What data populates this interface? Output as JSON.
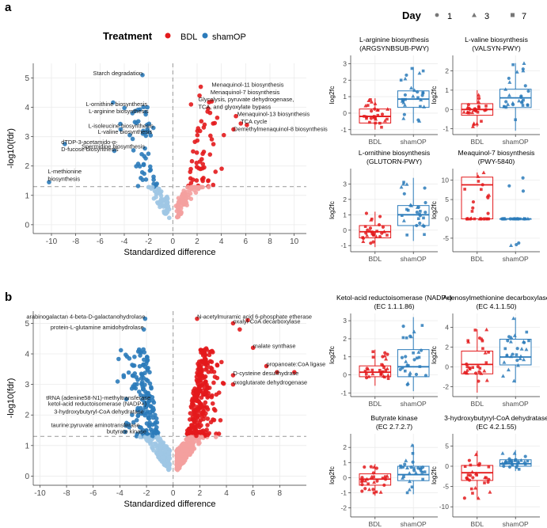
{
  "colors": {
    "bdl": "#e31a1c",
    "bdl_light": "#f4a09f",
    "sham": "#2b7bba",
    "sham_light": "#9ec6e4",
    "grid": "#ebebeb",
    "axis": "#333333",
    "dash": "#999999"
  },
  "panel_labels": {
    "a": "a",
    "b": "b"
  },
  "legend": {
    "treatment_title": "Treatment",
    "treatment_items": [
      "BDL",
      "shamOP"
    ],
    "day_title": "Day",
    "day_items": [
      "1",
      "3",
      "7"
    ]
  },
  "chart_data": [
    {
      "id": "volcano_a",
      "type": "scatter",
      "xlabel": "Standardized difference",
      "ylabel": "-log10(fdr)",
      "xlim": [
        -11.5,
        11
      ],
      "ylim": [
        -0.3,
        5.5
      ],
      "xticks": [
        -10,
        -8,
        -6,
        -4,
        -2,
        0,
        2,
        4,
        6,
        8,
        10
      ],
      "yticks": [
        0,
        1,
        2,
        3,
        4,
        5
      ],
      "threshold_y": 1.3,
      "annotations": [
        {
          "text": "Starch degradation",
          "x": -2.5,
          "y": 5.1
        },
        {
          "text": "L-ornithine biosynthesis",
          "x": -2.1,
          "y": 4.05
        },
        {
          "text": "L-arginine biosynthesis",
          "x": -2.0,
          "y": 3.8
        },
        {
          "text": "L-isoleucine biosynthesis",
          "x": -1.6,
          "y": 3.3
        },
        {
          "text": "L-valine biosynthesis",
          "x": -1.7,
          "y": 3.1
        },
        {
          "text": "dTDP-3-acetamido-α-",
          "x": -9.2,
          "y": 2.75
        },
        {
          "text": "D-fucose biosynthesis",
          "x": -9.2,
          "y": 2.5
        },
        {
          "text": "Spermidine biosynthesis",
          "x": -2.3,
          "y": 2.6
        },
        {
          "text": "L-methionine",
          "x": -10.3,
          "y": 1.75
        },
        {
          "text": "biosynthesis",
          "x": -10.3,
          "y": 1.5
        },
        {
          "text": "Menaquinol-11 biosynthesis",
          "x": 3.2,
          "y": 4.7
        },
        {
          "text": "Menaquinol-7 biosynthesis",
          "x": 3.1,
          "y": 4.45
        },
        {
          "text": "Glycolysis, pyruvate dehydrogenase,",
          "x": 2.1,
          "y": 4.2
        },
        {
          "text": "TCA, and glyoxylate bypass",
          "x": 2.1,
          "y": 3.95
        },
        {
          "text": "Menaquinol-13 biosynthesis",
          "x": 5.3,
          "y": 3.7
        },
        {
          "text": "TCA cycle",
          "x": 5.6,
          "y": 3.45
        },
        {
          "text": "Demethylmenaquinol-8 biosynthesis",
          "x": 5.0,
          "y": 3.2
        }
      ]
    },
    {
      "id": "volcano_b",
      "type": "scatter",
      "xlabel": "Standardized difference",
      "ylabel": "-log10(fdr)",
      "xlim": [
        -10.5,
        10
      ],
      "ylim": [
        -0.3,
        5.4
      ],
      "xticks": [
        -10,
        -8,
        -6,
        -4,
        -2,
        0,
        2,
        4,
        6,
        8
      ],
      "yticks": [
        0,
        1,
        2,
        3,
        4,
        5
      ],
      "threshold_y": 1.3,
      "annotations": [
        {
          "text": "arabinogalactan 4-beta-D-galactanohydrolase",
          "x": -2.1,
          "y": 5.15
        },
        {
          "text": "protein-L-glutamine amidohydrolase",
          "x": -2.2,
          "y": 4.8
        },
        {
          "text": "tRNA (adenine58-N1)-methyltransferase",
          "x": -1.7,
          "y": 2.5
        },
        {
          "text": "ketol-acid reductoisomerase (NADP+)",
          "x": -2.0,
          "y": 2.3
        },
        {
          "text": "3-hydroxybutyryl-CoA dehydratase",
          "x": -2.2,
          "y": 2.05
        },
        {
          "text": "taurine:pyruvate aminotransferase",
          "x": -2.5,
          "y": 1.6
        },
        {
          "text": "butyrate kinase",
          "x": -2.0,
          "y": 1.4
        },
        {
          "text": "N-acetylmuramic acid 6-phosphate etherase",
          "x": 1.8,
          "y": 5.15
        },
        {
          "text": "oxalyl-CoA decarboxylase",
          "x": 4.5,
          "y": 5.0
        },
        {
          "text": "malate synthase",
          "x": 6.0,
          "y": 4.2
        },
        {
          "text": "propanoate:CoA ligase",
          "x": 7.0,
          "y": 3.6
        },
        {
          "text": "D-cysteine desulfhydrase",
          "x": 4.5,
          "y": 3.3
        },
        {
          "text": "oxoglutarate dehydrogenase",
          "x": 4.5,
          "y": 3.0
        }
      ]
    },
    {
      "id": "box_a1",
      "type": "box",
      "title": [
        "L-arginine biosynthesis",
        "(ARGSYNBSUB-PWY)"
      ],
      "ylabel": "log2fc",
      "categories": [
        "BDL",
        "shamOP"
      ],
      "ylim": [
        -1.3,
        3.5
      ],
      "yticks": [
        -1,
        0,
        1,
        2,
        3
      ],
      "boxes": [
        {
          "q1": -0.6,
          "med": -0.2,
          "q3": 0.25,
          "lo": -1.0,
          "hi": 0.9
        },
        {
          "q1": 0.35,
          "med": 0.85,
          "q3": 1.35,
          "lo": -0.6,
          "hi": 2.8
        }
      ]
    },
    {
      "id": "box_a2",
      "type": "box",
      "title": [
        "L-valine biosynthesis",
        "(VALSYN-PWY)"
      ],
      "ylabel": "log2fc",
      "categories": [
        "BDL",
        "shamOP"
      ],
      "ylim": [
        -1.3,
        2.8
      ],
      "yticks": [
        -1,
        0,
        1,
        2
      ],
      "boxes": [
        {
          "q1": -0.3,
          "med": 0.0,
          "q3": 0.3,
          "lo": -0.9,
          "hi": 1.0
        },
        {
          "q1": 0.1,
          "med": 0.6,
          "q3": 1.05,
          "lo": -1.1,
          "hi": 2.4
        }
      ]
    },
    {
      "id": "box_a3",
      "type": "box",
      "title": [
        "L-ornithine biosynthesis",
        "(GLUTORN-PWY)"
      ],
      "ylabel": "log2fc",
      "categories": [
        "BDL",
        "shamOP"
      ],
      "ylim": [
        -1.4,
        4.0
      ],
      "yticks": [
        -1,
        0,
        1,
        2,
        3
      ],
      "boxes": [
        {
          "q1": -0.5,
          "med": -0.1,
          "q3": 0.3,
          "lo": -1.1,
          "hi": 1.2
        },
        {
          "q1": 0.3,
          "med": 1.0,
          "q3": 1.6,
          "lo": -0.7,
          "hi": 3.4
        }
      ]
    },
    {
      "id": "box_a4",
      "type": "box",
      "title": [
        "Meaquinol-7 biosynthesis",
        "(PWY-5840)"
      ],
      "ylabel": "log2fc",
      "categories": [
        "BDL",
        "shamOP"
      ],
      "ylim": [
        -8.5,
        13
      ],
      "yticks": [
        -5,
        0,
        5,
        10
      ],
      "boxes": [
        {
          "q1": 0.0,
          "med": 8.8,
          "q3": 10.8,
          "lo": 0.0,
          "hi": 12.0
        },
        {
          "q1": 0.0,
          "med": 0.0,
          "q3": 0.0,
          "lo": 0.0,
          "hi": 0.0
        }
      ]
    },
    {
      "id": "box_b1",
      "type": "box",
      "title": [
        "Ketol-acid reductoisomerase (NADP+)",
        "(EC 1.1.1.86)"
      ],
      "ylabel": "log2fc",
      "categories": [
        "BDL",
        "shamOP"
      ],
      "ylim": [
        -1.2,
        3.4
      ],
      "yticks": [
        -1,
        0,
        1,
        2,
        3
      ],
      "boxes": [
        {
          "q1": -0.1,
          "med": 0.15,
          "q3": 0.5,
          "lo": -0.6,
          "hi": 1.4
        },
        {
          "q1": -0.1,
          "med": 0.45,
          "q3": 1.4,
          "lo": -0.9,
          "hi": 3.2
        }
      ]
    },
    {
      "id": "box_b2",
      "type": "box",
      "title": [
        "Adenosylmethionine decarboxylase",
        "(EC 4.1.1.50)"
      ],
      "ylabel": "log2fc",
      "categories": [
        "BDL",
        "shamOP"
      ],
      "ylim": [
        -3.0,
        5.4
      ],
      "yticks": [
        -2,
        0,
        2,
        4
      ],
      "boxes": [
        {
          "q1": -0.7,
          "med": 0.25,
          "q3": 1.6,
          "lo": -2.6,
          "hi": 3.8
        },
        {
          "q1": 0.2,
          "med": 1.0,
          "q3": 2.8,
          "lo": -1.6,
          "hi": 5.0
        }
      ]
    },
    {
      "id": "box_b3",
      "type": "box",
      "title": [
        "Butyrate kinase",
        "(EC 2.7.2.7)"
      ],
      "ylabel": "log2fc",
      "categories": [
        "BDL",
        "shamOP"
      ],
      "ylim": [
        -2.6,
        2.9
      ],
      "yticks": [
        -2,
        -1,
        0,
        1,
        2
      ],
      "boxes": [
        {
          "q1": -0.5,
          "med": -0.1,
          "q3": 0.25,
          "lo": -1.2,
          "hi": 0.9
        },
        {
          "q1": -0.2,
          "med": 0.2,
          "q3": 0.75,
          "lo": -1.1,
          "hi": 2.2
        }
      ]
    },
    {
      "id": "box_b4",
      "type": "box",
      "title": [
        "3-hydroxybutyryl-CoA dehydratase",
        "(EC 4.2.1.55)"
      ],
      "ylabel": "log2fc",
      "categories": [
        "BDL",
        "shamOP"
      ],
      "ylim": [
        -12.5,
        8
      ],
      "yticks": [
        -10,
        -5,
        0,
        5
      ],
      "boxes": [
        {
          "q1": -3.5,
          "med": -1.6,
          "q3": 0.2,
          "lo": -8.0,
          "hi": 3.8
        },
        {
          "q1": 0.0,
          "med": 0.6,
          "q3": 1.6,
          "lo": -1.2,
          "hi": 4.0
        }
      ]
    }
  ]
}
